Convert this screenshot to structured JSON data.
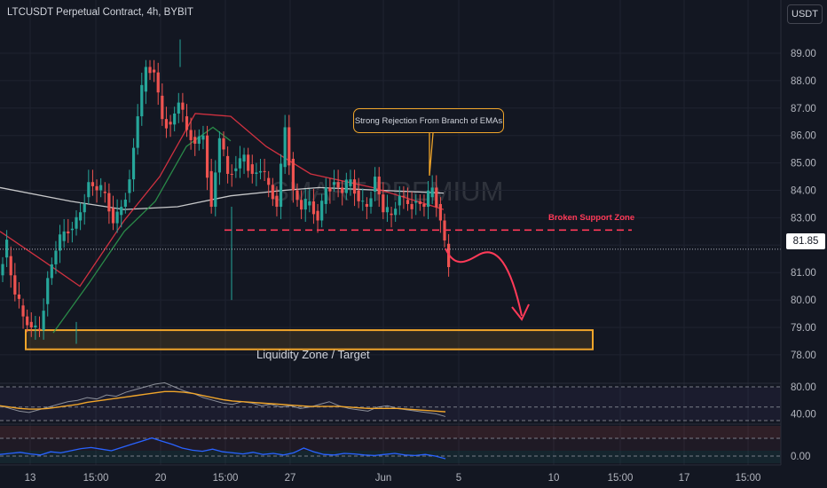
{
  "header": {
    "title": "LTCUSDT Perpetual Contract, 4h, BYBIT",
    "currency": "USDT"
  },
  "watermark": "SMART PREMIUM",
  "current_price": "81.85",
  "annotations": {
    "rejection": "Strong Rejection From Branch of EMAs",
    "broken_support": "Broken Support Zone",
    "liquidity": "Liquidity Zone / Target"
  },
  "colors": {
    "up": "#26a69a",
    "down": "#ef5350",
    "ema_white": "#e8e8e8",
    "ema_red": "#f23645",
    "ema_green": "#2e9e4f",
    "accent": "#f0a52a",
    "support_line": "#ff3a58"
  },
  "chart_data": [
    {
      "type": "candlestick",
      "title": "LTCUSDT Perpetual Contract, 4h, BYBIT",
      "x_tick_labels": [
        "13",
        "15:00",
        "20",
        "15:00",
        "27",
        "Jun",
        "5",
        "10",
        "15:00",
        "17",
        "15:00"
      ],
      "y_tick_labels": [
        "89.00",
        "88.00",
        "87.00",
        "86.00",
        "85.00",
        "84.00",
        "83.00",
        "82.00",
        "81.00",
        "80.00",
        "79.00",
        "78.00"
      ],
      "ylim": [
        77.4,
        90.2
      ],
      "current_price": 81.85,
      "ohlc_anchors": [
        [
          80.9,
          82.2
        ],
        [
          81.6,
          80.2
        ],
        [
          80.2,
          79.4
        ],
        [
          79.4,
          79.0
        ],
        [
          79.0,
          78.9
        ],
        [
          78.9,
          80.8
        ],
        [
          80.8,
          81.8
        ],
        [
          81.8,
          82.5
        ],
        [
          82.5,
          82.6
        ],
        [
          82.6,
          83.2
        ],
        [
          83.2,
          84.3
        ],
        [
          84.3,
          84.0
        ],
        [
          84.0,
          83.9
        ],
        [
          83.9,
          82.8
        ],
        [
          82.8,
          83.4
        ],
        [
          83.4,
          84.4
        ],
        [
          84.4,
          86.7
        ],
        [
          86.7,
          88.5
        ],
        [
          88.5,
          88.3
        ],
        [
          88.3,
          86.6
        ],
        [
          86.6,
          86.4
        ],
        [
          86.4,
          87.2
        ],
        [
          87.2,
          86.2
        ],
        [
          86.2,
          85.7
        ],
        [
          85.7,
          86.0
        ],
        [
          86.0,
          83.4
        ],
        [
          83.4,
          85.9
        ],
        [
          85.9,
          84.6
        ],
        [
          84.6,
          84.8
        ],
        [
          84.8,
          85.3
        ],
        [
          85.3,
          84.6
        ],
        [
          84.6,
          84.7
        ],
        [
          84.7,
          84.2
        ],
        [
          84.2,
          83.4
        ],
        [
          83.4,
          86.3
        ],
        [
          86.3,
          84.0
        ],
        [
          84.0,
          83.3
        ],
        [
          83.3,
          83.6
        ],
        [
          83.6,
          82.9
        ],
        [
          82.9,
          84.1
        ],
        [
          84.1,
          84.3
        ],
        [
          84.3,
          83.9
        ],
        [
          83.9,
          84.4
        ],
        [
          84.4,
          83.6
        ],
        [
          83.6,
          83.4
        ],
        [
          83.4,
          84.5
        ],
        [
          84.5,
          83.2
        ],
        [
          83.2,
          83.1
        ],
        [
          83.1,
          83.8
        ],
        [
          83.8,
          83.5
        ],
        [
          83.5,
          83.6
        ],
        [
          83.6,
          83.4
        ],
        [
          83.4,
          84.1
        ],
        [
          84.1,
          82.9
        ],
        [
          82.9,
          81.2
        ]
      ],
      "series": [
        {
          "name": "EMA (white)",
          "points": [
            [
              0,
              84.1
            ],
            [
              80,
              83.6
            ],
            [
              140,
              83.3
            ],
            [
              200,
              83.4
            ],
            [
              260,
              83.8
            ],
            [
              320,
              84.0
            ],
            [
              360,
              84.1
            ],
            [
              430,
              84.0
            ],
            [
              500,
              83.9
            ]
          ]
        },
        {
          "name": "EMA (red)",
          "points": [
            [
              0,
              82.5
            ],
            [
              50,
              81.4
            ],
            [
              90,
              80.5
            ],
            [
              140,
              82.9
            ],
            [
              180,
              84.5
            ],
            [
              220,
              86.8
            ],
            [
              260,
              86.7
            ],
            [
              300,
              85.6
            ],
            [
              350,
              84.6
            ],
            [
              420,
              84.1
            ],
            [
              500,
              83.3
            ]
          ]
        },
        {
          "name": "EMA (green)",
          "points": [
            [
              60,
              78.8
            ],
            [
              100,
              80.6
            ],
            [
              140,
              82.5
            ],
            [
              175,
              83.6
            ],
            [
              210,
              85.6
            ],
            [
              240,
              86.3
            ],
            [
              260,
              85.8
            ]
          ]
        }
      ],
      "support_level": 82.55,
      "liquidity_zone": [
        78.2,
        78.9
      ]
    },
    {
      "type": "line",
      "panel": "oscillator 1",
      "y_tick_labels": [
        "80.00",
        "40.00"
      ],
      "ylim": [
        20,
        90
      ],
      "levels": [
        80,
        70,
        50,
        30
      ],
      "series": [
        {
          "name": "fast",
          "values": [
            52,
            48,
            44,
            42,
            46,
            50,
            54,
            58,
            60,
            64,
            62,
            68,
            66,
            72,
            76,
            80,
            84,
            86,
            80,
            74,
            70,
            64,
            60,
            56,
            54,
            58,
            56,
            52,
            54,
            50,
            52,
            48,
            50,
            54,
            58,
            52,
            48,
            46,
            44,
            50,
            52,
            48,
            46,
            44,
            42,
            40,
            36
          ]
        },
        {
          "name": "slow",
          "values": [
            52,
            50,
            48,
            47,
            47,
            48,
            50,
            52,
            54,
            57,
            59,
            61,
            63,
            65,
            67,
            69,
            71,
            73,
            73,
            72,
            70,
            67,
            64,
            61,
            59,
            58,
            57,
            56,
            55,
            54,
            53,
            52,
            51,
            51,
            51,
            51,
            50,
            49,
            48,
            48,
            48,
            48,
            47,
            46,
            45,
            44,
            43
          ]
        }
      ]
    },
    {
      "type": "line",
      "panel": "oscillator 2",
      "y_tick_labels": [
        "0.00"
      ],
      "levels": [
        0
      ],
      "series": [
        {
          "name": "oscillator",
          "values": [
            0.3,
            0.5,
            0.7,
            0.4,
            0.2,
            0.8,
            0.6,
            1.0,
            1.4,
            1.6,
            1.3,
            1.0,
            1.6,
            2.2,
            2.8,
            3.4,
            2.8,
            2.2,
            1.5,
            1.1,
            0.9,
            1.3,
            0.8,
            0.6,
            0.4,
            0.7,
            0.3,
            0.5,
            0.2,
            0.6,
            1.5,
            0.8,
            0.3,
            0.2,
            0.5,
            0.4,
            0.2,
            0.1,
            0.3,
            0.5,
            0.2,
            0.1,
            0.3,
            0.0,
            -0.5
          ]
        }
      ]
    }
  ]
}
